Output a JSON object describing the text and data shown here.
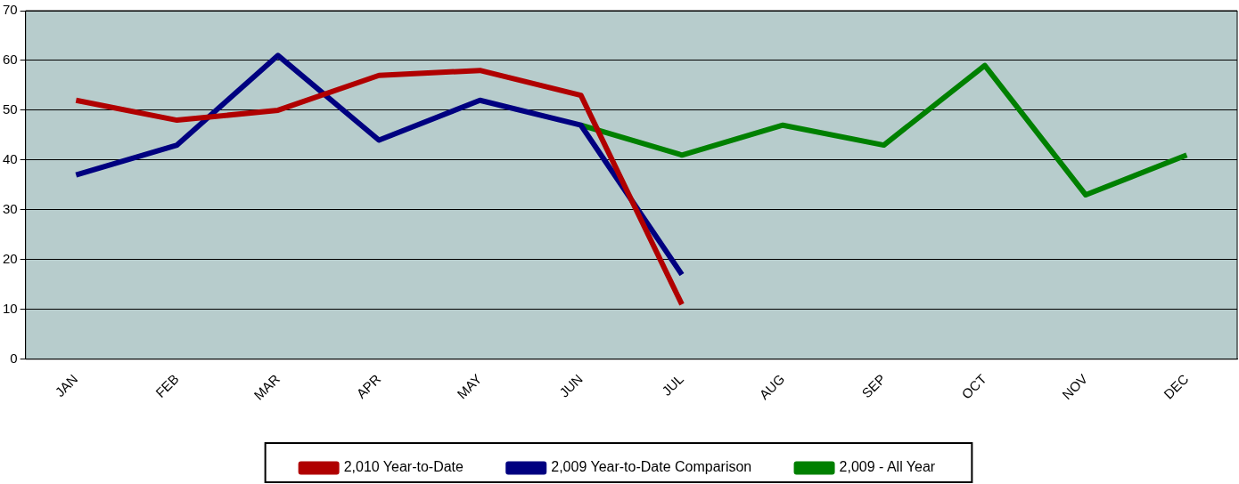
{
  "chart_data": {
    "type": "line",
    "categories": [
      "JAN",
      "FEB",
      "MAR",
      "APR",
      "MAY",
      "JUN",
      "JUL",
      "AUG",
      "SEP",
      "OCT",
      "NOV",
      "DEC"
    ],
    "series": [
      {
        "name": "2,010 Year-to-Date",
        "color": "#b00000",
        "values": [
          52,
          48,
          50,
          57,
          58,
          53,
          11,
          null,
          null,
          null,
          null,
          null
        ]
      },
      {
        "name": "2,009 Year-to-Date Comparison",
        "color": "#000080",
        "values": [
          37,
          43,
          61,
          44,
          52,
          47,
          17,
          null,
          null,
          null,
          null,
          null
        ]
      },
      {
        "name": "2,009 - All Year",
        "color": "#008000",
        "values": [
          null,
          null,
          null,
          null,
          null,
          47,
          41,
          47,
          43,
          59,
          33,
          41
        ]
      }
    ],
    "ylim": [
      0,
      70
    ],
    "yticks": [
      0,
      10,
      20,
      30,
      40,
      50,
      60,
      70
    ],
    "grid": "y",
    "legend": "bottom",
    "marker": "none",
    "line_style": "solid"
  }
}
